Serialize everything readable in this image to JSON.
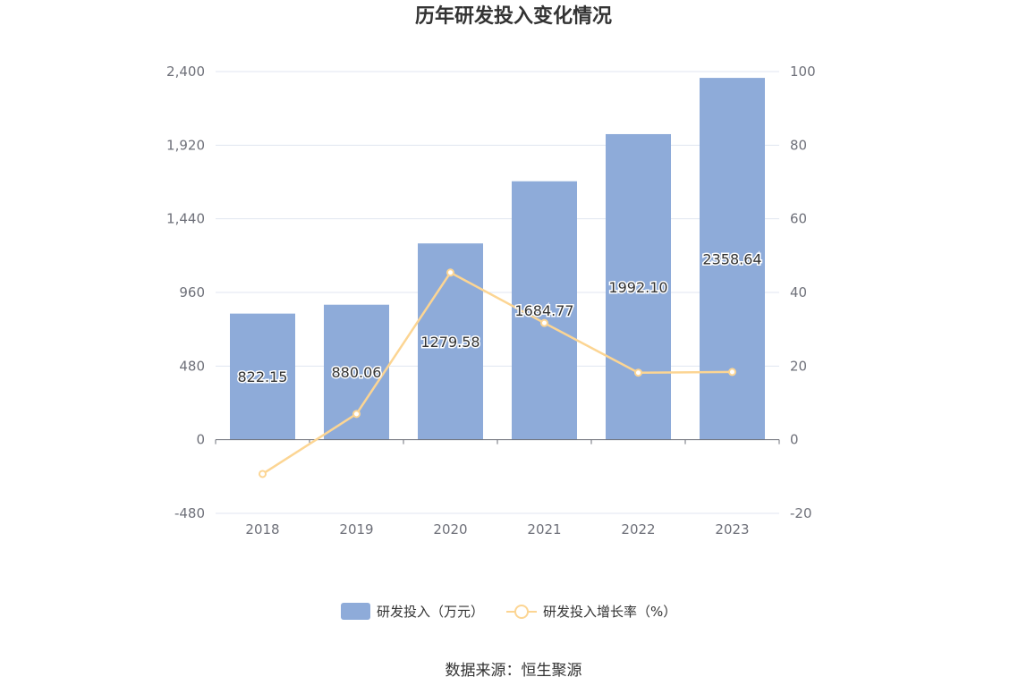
{
  "chart_data": {
    "type": "bar",
    "title": "历年研发投入变化情况",
    "categories": [
      "2018",
      "2019",
      "2020",
      "2021",
      "2022",
      "2023"
    ],
    "series": [
      {
        "name": "研发投入（万元）",
        "type": "bar",
        "axis": "left",
        "values": [
          822.15,
          880.06,
          1279.58,
          1684.77,
          1992.1,
          2358.64
        ],
        "labels": [
          "822.15",
          "880.06",
          "1279.58",
          "1684.77",
          "1992.10",
          "2358.64"
        ],
        "color": "#8eabd9"
      },
      {
        "name": "研发投入增长率（%）",
        "type": "line",
        "axis": "right",
        "values": [
          -9.3,
          7.0,
          45.4,
          31.7,
          18.2,
          18.4
        ],
        "color": "#fcd593"
      }
    ],
    "y_left": {
      "min": -480,
      "max": 2400,
      "ticks": [
        "2,400",
        "1,920",
        "1,440",
        "960",
        "480",
        "0",
        "-480"
      ],
      "tick_values": [
        2400,
        1920,
        1440,
        960,
        480,
        0,
        -480
      ]
    },
    "y_right": {
      "min": -20,
      "max": 100,
      "ticks": [
        "100",
        "80",
        "60",
        "40",
        "20",
        "0",
        "-20"
      ],
      "tick_values": [
        100,
        80,
        60,
        40,
        20,
        0,
        -20
      ]
    },
    "grid": true,
    "legend_position": "bottom"
  },
  "footer": {
    "source": "数据来源：恒生聚源"
  }
}
